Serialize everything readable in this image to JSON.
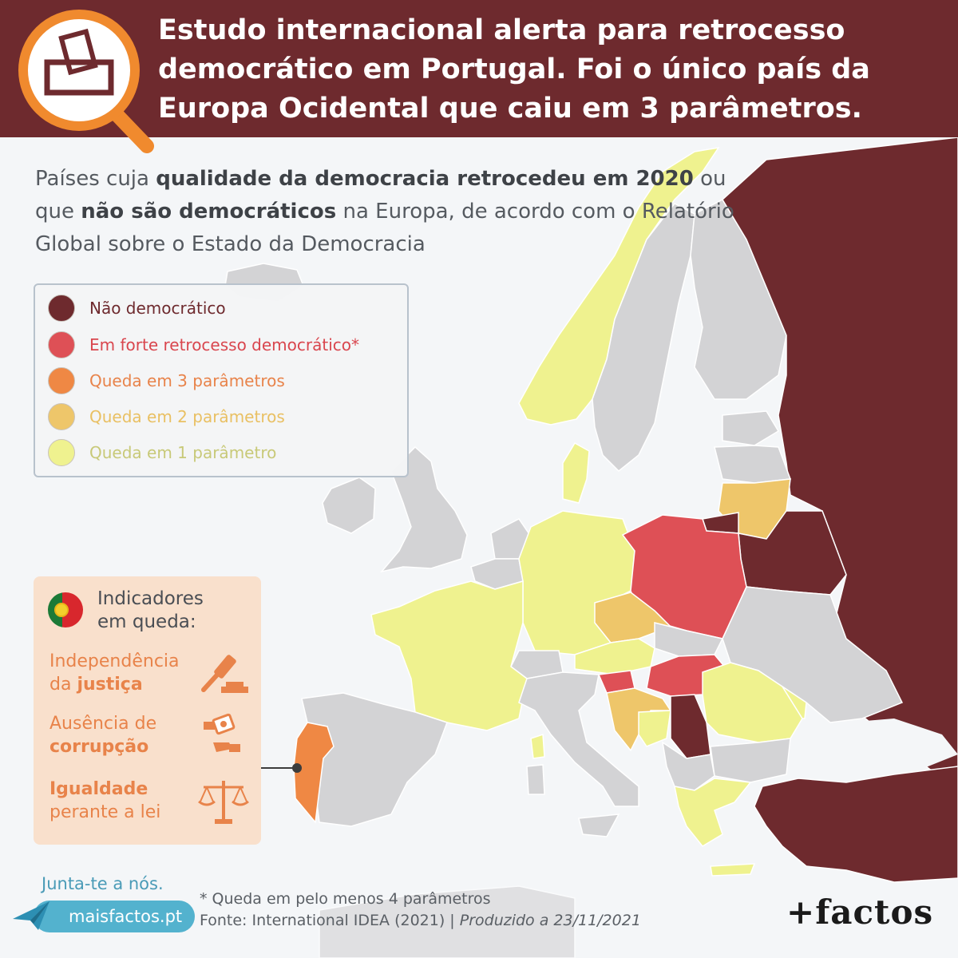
{
  "header": {
    "title": "Estudo internacional alerta para retrocesso democrático em Portugal. Foi o único país da Europa Ocidental que caiu em 3 parâmetros."
  },
  "subtitle": {
    "part1": "Países cuja ",
    "bold1": "qualidade da democracia retrocedeu em 2020",
    "part2": " ou que ",
    "bold2": "não são democráticos",
    "part3": " na Europa, de acordo com o Relatório Global sobre o Estado da Democracia"
  },
  "colors": {
    "nao_democratico": "#6e2a2e",
    "forte_retrocesso": "#de5056",
    "queda_3": "#ef8844",
    "queda_2": "#eec66a",
    "queda_1": "#eff28f",
    "sem_queda": "#d3d3d5",
    "sea": "#f4f6f8",
    "header": "#6e2a2e"
  },
  "legend": {
    "items": [
      {
        "label": "Não democrático",
        "color": "#6e2a2e",
        "text_color": "#6e2a2e"
      },
      {
        "label": "Em forte retrocesso democrático*",
        "color": "#de5056",
        "text_color": "#d9464e"
      },
      {
        "label": "Queda em 3 parâmetros",
        "color": "#ef8844",
        "text_color": "#e8834a"
      },
      {
        "label": "Queda em 2 parâmetros",
        "color": "#eec66a",
        "text_color": "#e9c063"
      },
      {
        "label": "Queda em 1 parâmetro",
        "color": "#eff28f",
        "text_color": "#c8c978"
      }
    ]
  },
  "indicators": {
    "title_line1": "Indicadores",
    "title_line2": "em queda:",
    "items": [
      {
        "line1": "Independência",
        "line2_pre": "da ",
        "line2_bold": "justiça",
        "icon": "gavel-icon"
      },
      {
        "line1": "Ausência de",
        "line2_bold": "corrupção",
        "icon": "bribe-icon"
      },
      {
        "line1_bold": "Igualdade",
        "line2": "perante a lei",
        "icon": "scales-icon"
      }
    ]
  },
  "footer": {
    "join": "Junta-te a nós.",
    "site": "maisfactos.pt",
    "note": "* Queda em pelo menos 4 parâmetros",
    "source": "Fonte: International IDEA (2021) | ",
    "produced": "Produzido a 23/11/2021",
    "brand": "+factos"
  },
  "icons": {
    "header": "ballot-magnifier-icon",
    "site": "paper-plane-icon",
    "flag": "portugal-flag-icon"
  }
}
